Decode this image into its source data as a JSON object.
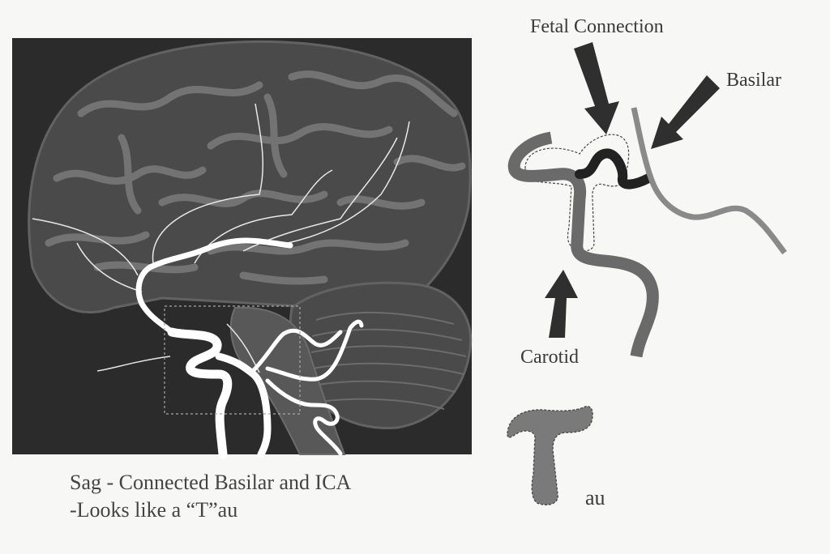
{
  "labels": {
    "fetal_connection": "Fetal Connection",
    "basilar": "Basilar",
    "carotid": "Carotid",
    "au": "au"
  },
  "caption": {
    "line1": "Sag - Connected Basilar and ICA",
    "line2": "-Looks like a “T”au"
  },
  "colors": {
    "background": "#f7f7f5",
    "brain_panel": "#2b2b2b",
    "brain_tissue": "#555555",
    "sulci": "#7a7a7a",
    "vessel_highlight": "#ffffff",
    "carotid_vessel": "#6a6a6a",
    "basilar_vessel": "#8a8a8a",
    "fetal_connection_vessel": "#222222",
    "arrow": "#2f2f2f",
    "tau_fill": "#7a7a7a"
  }
}
